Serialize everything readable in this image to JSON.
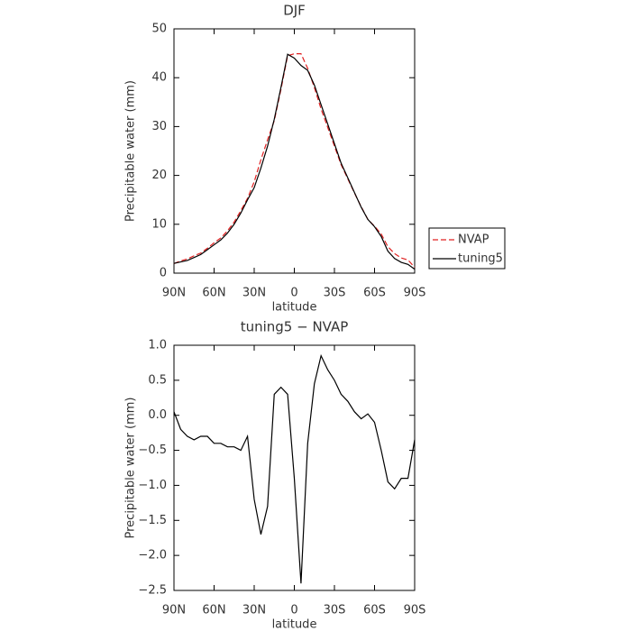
{
  "chart_data": [
    {
      "type": "line",
      "title": "DJF",
      "xlabel": "latitude",
      "ylabel": "Precipitable water (mm)",
      "x": [
        90,
        85,
        80,
        75,
        70,
        65,
        60,
        55,
        50,
        45,
        40,
        35,
        30,
        25,
        20,
        15,
        10,
        5,
        0,
        -5,
        -10,
        -15,
        -20,
        -25,
        -30,
        -35,
        -40,
        -45,
        -50,
        -55,
        -60,
        -65,
        -70,
        -75,
        -80,
        -85,
        -90
      ],
      "series": [
        {
          "name": "NVAP",
          "color": "#e02020",
          "dashed": true,
          "values": [
            1.95,
            2.5,
            2.9,
            3.55,
            4.1,
            5.1,
            6.2,
            7.2,
            8.65,
            10.45,
            12.8,
            15.3,
            18.7,
            23.2,
            27.3,
            31.2,
            37.6,
            44.5,
            44.9,
            44.9,
            41.9,
            38,
            33.6,
            29.8,
            26,
            22.2,
            19.3,
            16.4,
            13.6,
            11,
            9.6,
            8,
            5.4,
            4,
            3.1,
            2.7,
            1.2
          ]
        },
        {
          "name": "tuning5",
          "color": "#000000",
          "dashed": false,
          "values": [
            2,
            2.3,
            2.6,
            3.2,
            3.8,
            4.8,
            5.8,
            6.8,
            8.2,
            10,
            12.3,
            15,
            17.5,
            21.5,
            26,
            31.5,
            38,
            44.8,
            44,
            42.5,
            41.5,
            38.5,
            34.5,
            30.5,
            26.5,
            22.5,
            19.5,
            16.5,
            13.5,
            11,
            9.5,
            7.5,
            4.5,
            3,
            2.2,
            1.8,
            0.8
          ]
        }
      ],
      "xlim": [
        90,
        -90
      ],
      "xticks": [
        {
          "value": 90,
          "label": "90N"
        },
        {
          "value": 60,
          "label": "60N"
        },
        {
          "value": 30,
          "label": "30N"
        },
        0,
        {
          "value": -30,
          "label": "30S"
        },
        {
          "value": -60,
          "label": "60S"
        },
        {
          "value": -90,
          "label": "90S"
        }
      ],
      "ylim": [
        0,
        50
      ],
      "yticks": [
        0,
        10,
        20,
        30,
        40,
        50
      ],
      "legend": "right"
    },
    {
      "type": "line",
      "title": "tuning5 − NVAP",
      "xlabel": "latitude",
      "ylabel": "Precipitable water (mm)",
      "x": [
        90,
        85,
        80,
        75,
        70,
        65,
        60,
        55,
        50,
        45,
        40,
        35,
        30,
        25,
        20,
        15,
        10,
        5,
        0,
        -5,
        -10,
        -15,
        -20,
        -25,
        -30,
        -35,
        -40,
        -45,
        -50,
        -55,
        -60,
        -65,
        -70,
        -75,
        -80,
        -85,
        -90
      ],
      "series": [
        {
          "color": "#000000",
          "dashed": false,
          "values": [
            0.05,
            -0.2,
            -0.3,
            -0.35,
            -0.3,
            -0.3,
            -0.4,
            -0.4,
            -0.45,
            -0.45,
            -0.5,
            -0.3,
            -1.2,
            -1.7,
            -1.3,
            0.3,
            0.4,
            0.3,
            -0.9,
            -2.4,
            -0.4,
            0.45,
            0.85,
            0.65,
            0.5,
            0.3,
            0.2,
            0.05,
            -0.05,
            0.02,
            -0.1,
            -0.5,
            -0.95,
            -1.05,
            -0.9,
            -0.9,
            -0.35
          ]
        }
      ],
      "xlim": [
        90,
        -90
      ],
      "xticks": [
        {
          "value": 90,
          "label": "90N"
        },
        {
          "value": 60,
          "label": "60N"
        },
        {
          "value": 30,
          "label": "30N"
        },
        0,
        {
          "value": -30,
          "label": "30S"
        },
        {
          "value": -60,
          "label": "60S"
        },
        {
          "value": -90,
          "label": "90S"
        }
      ],
      "ylim": [
        -2.5,
        1.0
      ],
      "yticks": [
        {
          "value": -2.5,
          "label": "−2.5"
        },
        {
          "value": -2.0,
          "label": "−2.0"
        },
        {
          "value": -1.5,
          "label": "−1.5"
        },
        {
          "value": -1.0,
          "label": "−1.0"
        },
        {
          "value": -0.5,
          "label": "−0.5"
        },
        {
          "value": 0,
          "label": "0.0"
        },
        {
          "value": 0.5,
          "label": "0.5"
        },
        {
          "value": 1.0,
          "label": "1.0"
        }
      ]
    }
  ]
}
